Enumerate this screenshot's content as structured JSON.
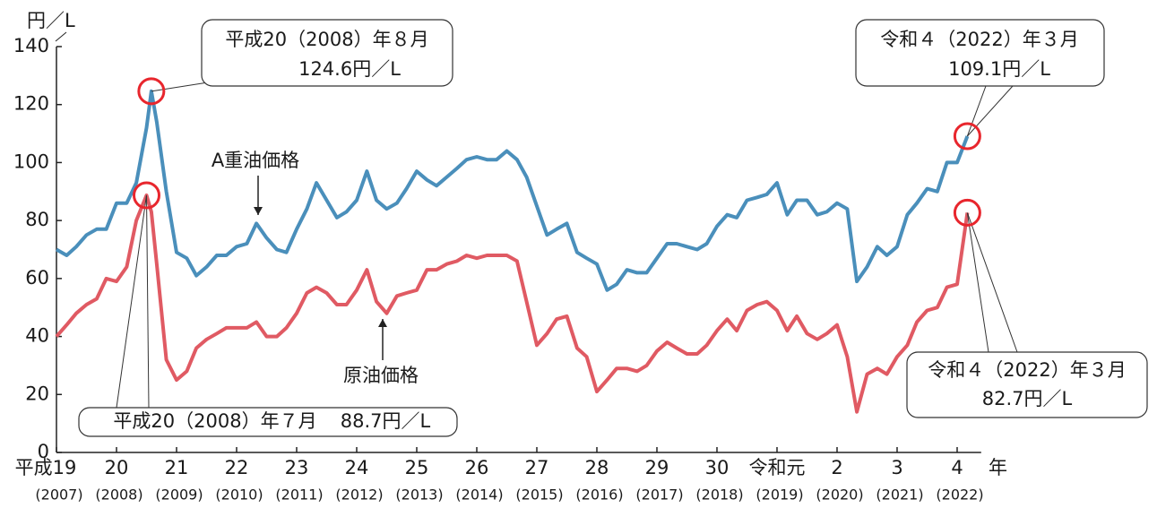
{
  "chart_data": {
    "type": "line",
    "y_unit": "円／L",
    "x_unit": "年",
    "x": [
      2007,
      2007.17,
      2007.33,
      2007.5,
      2007.67,
      2007.83,
      2008,
      2008.17,
      2008.33,
      2008.5,
      2008.58,
      2008.67,
      2008.83,
      2009,
      2009.17,
      2009.33,
      2009.5,
      2009.67,
      2009.83,
      2010,
      2010.17,
      2010.33,
      2010.5,
      2010.67,
      2010.83,
      2011,
      2011.17,
      2011.33,
      2011.5,
      2011.67,
      2011.83,
      2012,
      2012.17,
      2012.33,
      2012.5,
      2012.67,
      2012.83,
      2013,
      2013.17,
      2013.33,
      2013.5,
      2013.67,
      2013.83,
      2014,
      2014.17,
      2014.33,
      2014.5,
      2014.67,
      2014.83,
      2015,
      2015.17,
      2015.33,
      2015.5,
      2015.67,
      2015.83,
      2016,
      2016.17,
      2016.33,
      2016.5,
      2016.67,
      2016.83,
      2017,
      2017.17,
      2017.33,
      2017.5,
      2017.67,
      2017.83,
      2018,
      2018.17,
      2018.33,
      2018.5,
      2018.67,
      2018.83,
      2019,
      2019.17,
      2019.33,
      2019.5,
      2019.67,
      2019.83,
      2020,
      2020.17,
      2020.33,
      2020.5,
      2020.67,
      2020.83,
      2021,
      2021.17,
      2021.33,
      2021.5,
      2021.67,
      2021.83,
      2022,
      2022.17
    ],
    "series": [
      {
        "name": "A重油価格",
        "color": "#4a8fbb",
        "values": [
          70,
          68,
          71,
          75,
          77,
          77,
          86,
          86,
          93,
          112,
          124.6,
          114,
          90,
          69,
          67,
          61,
          64,
          68,
          68,
          71,
          72,
          79,
          74,
          70,
          69,
          77,
          84,
          93,
          87,
          81,
          83,
          87,
          97,
          87,
          84,
          86,
          91,
          97,
          94,
          92,
          95,
          98,
          101,
          102,
          101,
          101,
          104,
          101,
          95,
          85,
          75,
          77,
          79,
          69,
          67,
          65,
          56,
          58,
          63,
          62,
          62,
          67,
          72,
          72,
          71,
          70,
          72,
          78,
          82,
          81,
          87,
          88,
          89,
          93,
          82,
          87,
          87,
          82,
          83,
          86,
          84,
          59,
          64,
          71,
          68,
          71,
          82,
          86,
          91,
          90,
          100,
          100,
          109.1
        ],
        "value_labels": [
          null,
          null,
          null,
          null,
          null,
          null,
          null,
          null,
          null,
          null,
          "124.6円／L",
          null,
          null,
          null,
          null,
          null,
          null,
          null,
          null,
          null,
          null,
          null,
          null,
          null,
          null,
          null,
          null,
          null,
          null,
          null,
          null,
          null,
          null,
          null,
          null,
          null,
          null,
          null,
          null,
          null,
          null,
          null,
          null,
          null,
          null,
          null,
          null,
          null,
          null,
          null,
          null,
          null,
          null,
          null,
          null,
          null,
          null,
          null,
          null,
          null,
          null,
          null,
          null,
          null,
          null,
          null,
          null,
          null,
          null,
          null,
          null,
          null,
          null,
          null,
          null,
          null,
          null,
          null,
          null,
          null,
          null,
          null,
          null,
          null,
          null,
          null,
          null,
          null,
          null,
          null,
          null,
          null,
          "109.1円／L"
        ]
      },
      {
        "name": "原油価格",
        "color": "#e05a63",
        "values": [
          40,
          44,
          48,
          51,
          53,
          60,
          59,
          64,
          80,
          88.7,
          83,
          65,
          32,
          25,
          28,
          36,
          39,
          41,
          43,
          43,
          43,
          45,
          40,
          40,
          43,
          48,
          55,
          57,
          55,
          51,
          51,
          56,
          63,
          52,
          48,
          54,
          55,
          56,
          63,
          63,
          65,
          66,
          68,
          67,
          68,
          68,
          68,
          66,
          52,
          37,
          41,
          46,
          47,
          36,
          33,
          21,
          25,
          29,
          29,
          28,
          30,
          35,
          38,
          36,
          34,
          34,
          37,
          42,
          46,
          42,
          49,
          51,
          52,
          49,
          42,
          47,
          41,
          39,
          41,
          44,
          33,
          14,
          27,
          29,
          27,
          33,
          37,
          45,
          49,
          50,
          57,
          58,
          82.7
        ],
        "value_labels": [
          null,
          null,
          null,
          null,
          null,
          null,
          null,
          null,
          null,
          "88.7円／L",
          null,
          null,
          null,
          null,
          null,
          null,
          null,
          null,
          null,
          null,
          null,
          null,
          null,
          null,
          null,
          null,
          null,
          null,
          null,
          null,
          null,
          null,
          null,
          null,
          null,
          null,
          null,
          null,
          null,
          null,
          null,
          null,
          null,
          null,
          null,
          null,
          null,
          null,
          null,
          null,
          null,
          null,
          null,
          null,
          null,
          null,
          null,
          null,
          null,
          null,
          null,
          null,
          null,
          null,
          null,
          null,
          null,
          null,
          null,
          null,
          null,
          null,
          null,
          null,
          null,
          null,
          null,
          null,
          null,
          null,
          null,
          null,
          null,
          null,
          null,
          null,
          null,
          null,
          null,
          null,
          null,
          null,
          "82.7円／L"
        ]
      }
    ],
    "annotations": [
      "平成20（2008）年８月",
      "令和４（2022）年３月",
      "平成20（2008）年７月",
      "令和４（2022）年３月"
    ],
    "xlim": [
      2007,
      2022.4
    ],
    "ylim": [
      0,
      140
    ],
    "yticks": [
      0,
      20,
      40,
      60,
      80,
      100,
      120,
      140
    ],
    "xticks": [
      {
        "value": 2007,
        "label": "平成19"
      },
      {
        "value": 2008,
        "label": "20"
      },
      {
        "value": 2009,
        "label": "21"
      },
      {
        "value": 2010,
        "label": "22"
      },
      {
        "value": 2011,
        "label": "23"
      },
      {
        "value": 2012,
        "label": "24"
      },
      {
        "value": 2013,
        "label": "25"
      },
      {
        "value": 2014,
        "label": "26"
      },
      {
        "value": 2015,
        "label": "27"
      },
      {
        "value": 2016,
        "label": "28"
      },
      {
        "value": 2017,
        "label": "29"
      },
      {
        "value": 2018,
        "label": "30"
      },
      {
        "value": 2019,
        "label": "令和元"
      },
      {
        "value": 2020,
        "label": "2"
      },
      {
        "value": 2021,
        "label": "3"
      },
      {
        "value": 2022,
        "label": "4"
      }
    ],
    "xtick_sublabels": [
      "(2007)",
      "(2008)",
      "(2009)",
      "(2010)",
      "(2011)",
      "(2012)",
      "(2013)",
      "(2014)",
      "(2015)",
      "(2016)",
      "(2017)",
      "(2018)",
      "(2019)",
      "(2020)",
      "(2021)",
      "(2022)"
    ],
    "grid": false
  }
}
